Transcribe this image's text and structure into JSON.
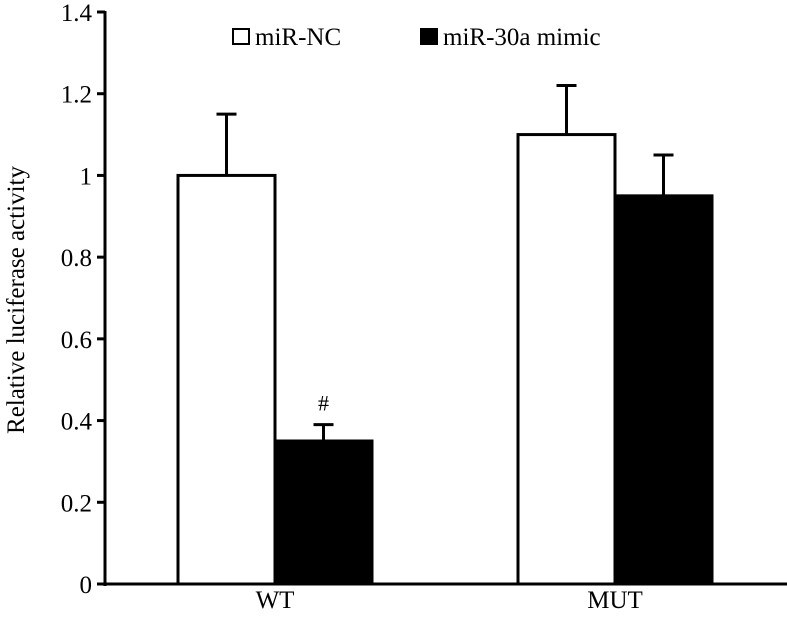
{
  "chart_data": {
    "type": "bar",
    "title": "",
    "xlabel": "",
    "ylabel": "Relative luciferase activity",
    "ylim": [
      0,
      1.4
    ],
    "yticks": [
      "0",
      "0.2",
      "0.4",
      "0.6",
      "0.8",
      "1",
      "1.2",
      "1.4"
    ],
    "ytick_values": [
      0,
      0.2,
      0.4,
      0.6,
      0.8,
      1,
      1.2,
      1.4
    ],
    "categories": [
      "WT",
      "MUT"
    ],
    "series": [
      {
        "name": "miR-NC",
        "color": "#ffffff",
        "values": [
          1.0,
          1.1
        ],
        "error": [
          0.15,
          0.12
        ],
        "annotations": [
          "",
          ""
        ]
      },
      {
        "name": "miR-30a mimic",
        "color": "#000000",
        "values": [
          0.35,
          0.95
        ],
        "error": [
          0.04,
          0.1
        ],
        "annotations": [
          "#",
          ""
        ]
      }
    ],
    "legend_position": "top",
    "grid": false
  }
}
